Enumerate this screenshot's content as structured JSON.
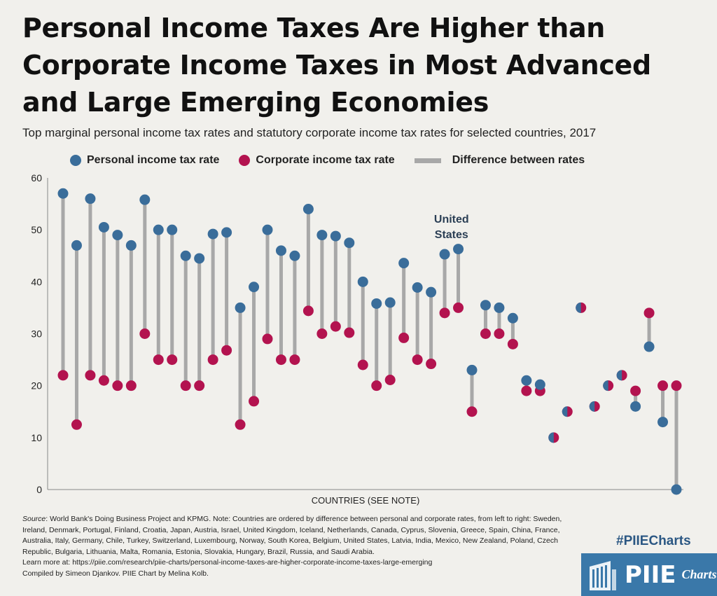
{
  "title": "Personal Income Taxes Are Higher than Corporate Income Taxes in Most Advanced and Large Emerging Economies",
  "subtitle": "Top marginal personal income tax rates and statutory corporate income tax rates for selected countries, 2017",
  "legend": {
    "personal": "Personal income tax rate",
    "corporate": "Corporate income tax rate",
    "difference": "Difference between rates"
  },
  "colors": {
    "personal": "#3a6d9a",
    "corporate": "#b3134f",
    "difference": "#a8a8a8",
    "background": "#f1f0ec",
    "brand": "#3a78a9"
  },
  "chart_data": {
    "type": "scatter",
    "xlabel": "COUNTRIES (SEE NOTE)",
    "ylabel": "",
    "ylim": [
      0,
      60
    ],
    "yticks": [
      0,
      10,
      20,
      30,
      40,
      50,
      60
    ],
    "annotation": "United States",
    "annotation_index": 29,
    "countries": [
      "Sweden",
      "Ireland",
      "Denmark",
      "Portugal",
      "Finland",
      "Croatia",
      "Japan",
      "Austria",
      "Israel",
      "United Kingdom",
      "Iceland",
      "Netherlands",
      "Canada",
      "Cyprus",
      "Slovenia",
      "Greece",
      "Spain",
      "China",
      "France",
      "Australia",
      "Italy",
      "Germany",
      "Chile",
      "Turkey",
      "Switzerland",
      "Luxembourg",
      "Norway",
      "South Korea",
      "Belgium",
      "United States",
      "Latvia",
      "India",
      "Mexico",
      "New Zealand",
      "Poland",
      "Czech Republic",
      "Bulgaria",
      "Lithuania",
      "Malta",
      "Romania",
      "Estonia",
      "Slovakia",
      "Hungary",
      "Brazil",
      "Russia",
      "Saudi Arabia"
    ],
    "series": [
      {
        "name": "Personal income tax rate",
        "values": [
          57,
          47,
          56,
          50.5,
          49,
          47,
          55.8,
          50,
          50,
          45,
          44.5,
          49.2,
          49.5,
          35,
          39,
          50,
          46,
          45,
          54,
          49,
          48.8,
          47.5,
          40,
          35.8,
          36,
          43.6,
          38.9,
          38,
          45.3,
          46.3,
          23,
          35.5,
          35,
          33,
          21,
          20.2,
          10,
          15,
          35,
          16,
          20,
          22,
          16,
          27.5,
          13,
          0
        ]
      },
      {
        "name": "Corporate income tax rate",
        "values": [
          22,
          12.5,
          22,
          21,
          20,
          20,
          30,
          25,
          25,
          20,
          20,
          25,
          26.8,
          12.5,
          17,
          29,
          25,
          25,
          34.4,
          30,
          31.4,
          30.2,
          24,
          20,
          21.1,
          29.2,
          25,
          24.2,
          34,
          35,
          15,
          30,
          30,
          28,
          19,
          19,
          10,
          15,
          35,
          16,
          20,
          22,
          19,
          34,
          20,
          20
        ]
      }
    ]
  },
  "notes": {
    "source_label": "Source",
    "source_text": ": World Bank's Doing Business Project and KPMG. Note: Countries are ordered by difference between personal and corporate rates, from left to right: Sweden, Ireland, Denmark, Portugal, Finland, Croatia, Japan, Austria, Israel, United Kingdom, Iceland, Netherlands, Canada, Cyprus, Slovenia, Greece, Spain, China, France, Australia, Italy, Germany, Chile, Turkey, Switzerland, Luxembourg, Norway, South Korea, Belgium, United States, Latvia, India, Mexico, New Zealand, Poland, Czech Republic, Bulgaria, Lithuania, Malta, Romania, Estonia, Slovakia, Hungary, Brazil, Russia, and Saudi Arabia.",
    "learn_more": "Learn more at: https://piie.com/research/piie-charts/personal-income-taxes-are-higher-corporate-income-taxes-large-emerging",
    "credits": "Compiled by Simeon Djankov. PIIE Chart by Melina Kolb."
  },
  "branding": {
    "hashtag": "#PIIECharts",
    "logo_main": "PIIE",
    "logo_sub": "Charts"
  }
}
